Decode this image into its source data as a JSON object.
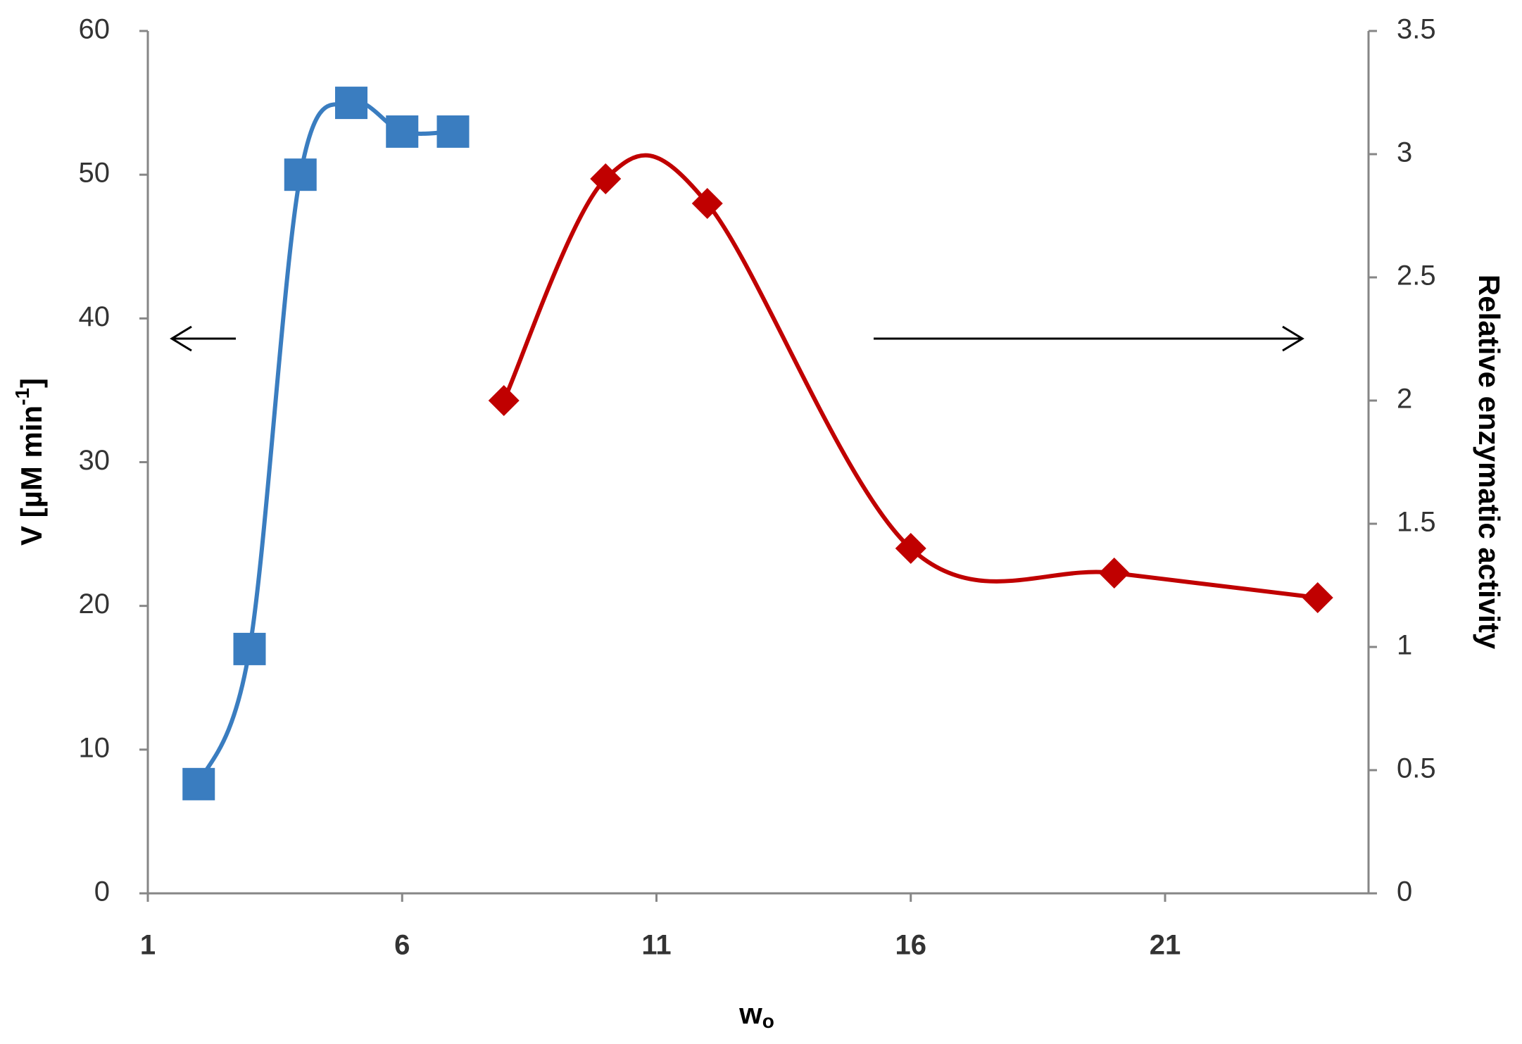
{
  "chart_data": {
    "type": "line",
    "xlabel": {
      "text": "w",
      "sub": "o"
    },
    "ylabel": {
      "text": "V [µM min",
      "sup": "-1",
      "close": "]"
    },
    "y2label": "Relative enzymatic activity",
    "xlim": [
      1,
      25
    ],
    "xticks": [
      1,
      6,
      11,
      16,
      21
    ],
    "ylim": [
      0,
      60
    ],
    "yticks": [
      0,
      10,
      20,
      30,
      40,
      50,
      60
    ],
    "y2lim": [
      0,
      3.5
    ],
    "y2ticks": [
      0,
      0.5,
      1,
      1.5,
      2,
      2.5,
      3,
      3.5
    ],
    "series": [
      {
        "color": "#3a7dc0",
        "marker": "square",
        "x": [
          2,
          3,
          4,
          5,
          6,
          7
        ],
        "values": [
          7.6,
          17,
          50,
          55,
          53,
          53
        ]
      },
      {
        "color": "#c00000",
        "marker": "diamond",
        "axis": "y2",
        "x": [
          8,
          10,
          12,
          16,
          20,
          24
        ],
        "values": [
          2.0,
          2.9,
          2.8,
          1.4,
          1.3,
          1.2
        ]
      }
    ]
  }
}
